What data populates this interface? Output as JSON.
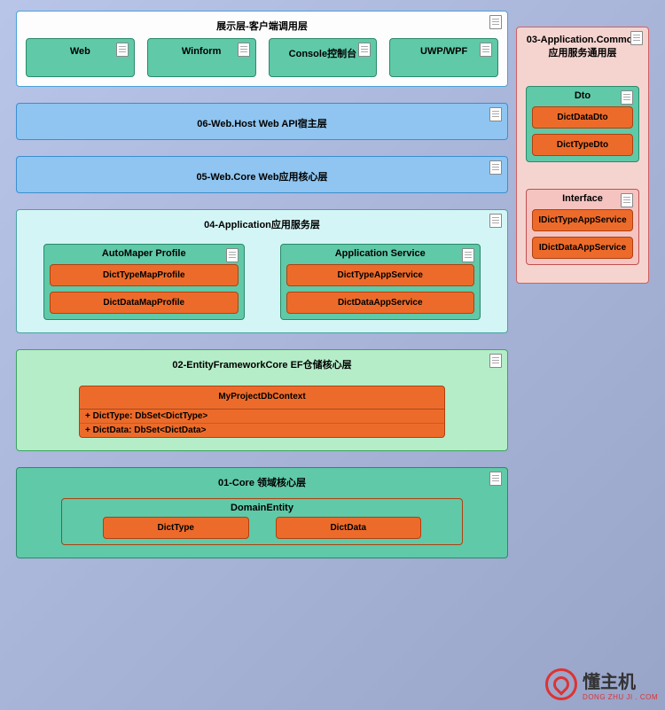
{
  "colors": {
    "panel_white_bg": "#fdfdfd",
    "panel_white_border": "#4aa3d9",
    "panel_blue_bg": "#8fc5f0",
    "panel_blue_border": "#3a8fd0",
    "panel_cyan_bg": "#d4f5f5",
    "panel_cyan_border": "#4aa3a3",
    "panel_green_bg": "#b5edc8",
    "panel_green_border": "#3fa35f",
    "panel_teal_bg": "#5fc9a8",
    "panel_teal_border": "#2a8a6a",
    "panel_pink_bg": "#f5d4d0",
    "panel_pink_border": "#d06060",
    "box_teal_bg": "#5fc9a8",
    "box_teal_border": "#2a8a6a",
    "box_pink_bg": "#f5c4c0",
    "box_pink_border": "#c05050",
    "item_orange_bg": "#ed6b2a",
    "item_orange_border": "#b04010",
    "item_orange_text": "#000000"
  },
  "presentation": {
    "title": "展示层-客户端调用层",
    "items": [
      "Web",
      "Winform",
      "Console控制台",
      "UWP/WPF"
    ]
  },
  "webhost": {
    "title": "06-Web.Host Web API宿主层"
  },
  "webcore": {
    "title": "05-Web.Core Web应用核心层"
  },
  "application": {
    "title": "04-Application应用服务层",
    "automapper": {
      "title": "AutoMaper Profile",
      "items": [
        "DictTypeMapProfile",
        "DictDataMapProfile"
      ]
    },
    "service": {
      "title": "Application Service",
      "items": [
        "DictTypeAppService",
        "DictDataAppService"
      ]
    }
  },
  "ef": {
    "title": "02-EntityFrameworkCore EF仓储核心层",
    "context": {
      "title": "MyProjectDbContext",
      "rows": [
        "+   DictType: DbSet<DictType>",
        "+   DictData: DbSet<DictData>"
      ]
    }
  },
  "core": {
    "title": "01-Core 领域核心层",
    "entity": {
      "title": "DomainEntity",
      "items": [
        "DictType",
        "DictData"
      ]
    }
  },
  "common": {
    "title": "03-Application.Common",
    "subtitle": "应用服务通用层",
    "dto": {
      "title": "Dto",
      "items": [
        "DictDataDto",
        "DictTypeDto"
      ]
    },
    "interface": {
      "title": "Interface",
      "items": [
        "IDictTypeAppService",
        "IDictDataAppService"
      ]
    }
  },
  "watermark": {
    "text": "懂主机",
    "sub": "DONG ZHU JI . COM"
  }
}
